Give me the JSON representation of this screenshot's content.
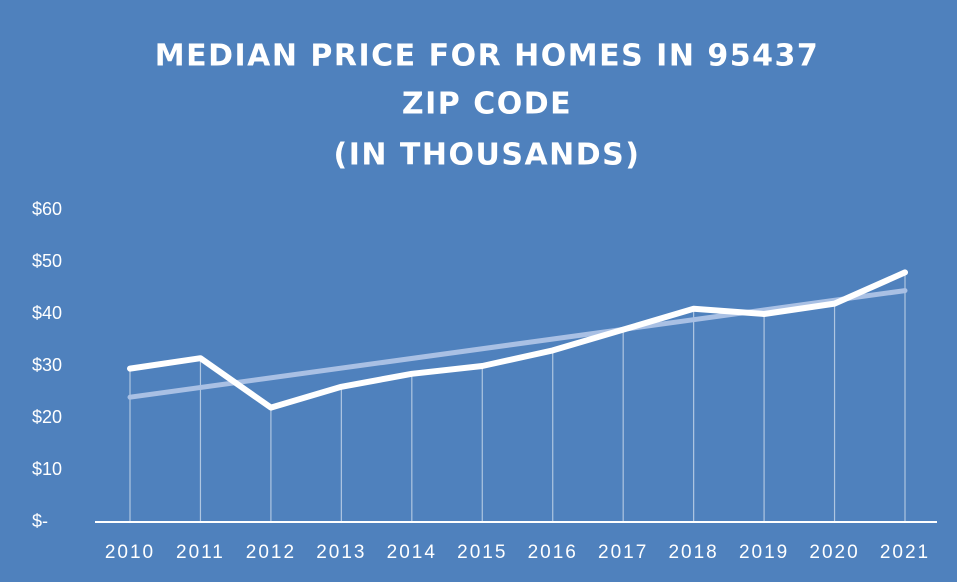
{
  "chart_data": {
    "type": "line",
    "title": [
      "MEDIAN PRICE FOR HOMES IN 95437",
      "ZIP CODE",
      "(IN THOUSANDS)"
    ],
    "categories": [
      "2010",
      "2011",
      "2012",
      "2013",
      "2014",
      "2015",
      "2016",
      "2017",
      "2018",
      "2019",
      "2020",
      "2021"
    ],
    "series": [
      {
        "color": "#ffffff",
        "values": [
          29.5,
          31.5,
          22,
          26,
          28.5,
          30,
          33,
          37,
          41,
          40,
          42,
          48
        ]
      }
    ],
    "trendline": {
      "color": "#a9c0e4",
      "values": [
        24,
        44.5
      ]
    },
    "background": "#4f81bd",
    "ylim": [
      0,
      60
    ],
    "yticks": [
      {
        "value": 0,
        "label": "$-"
      },
      {
        "value": 10,
        "label": "$10"
      },
      {
        "value": 20,
        "label": "$20"
      },
      {
        "value": 30,
        "label": "$30"
      },
      {
        "value": 40,
        "label": "$40"
      },
      {
        "value": 50,
        "label": "$50"
      },
      {
        "value": 60,
        "label": "$60"
      }
    ],
    "grid": false
  }
}
